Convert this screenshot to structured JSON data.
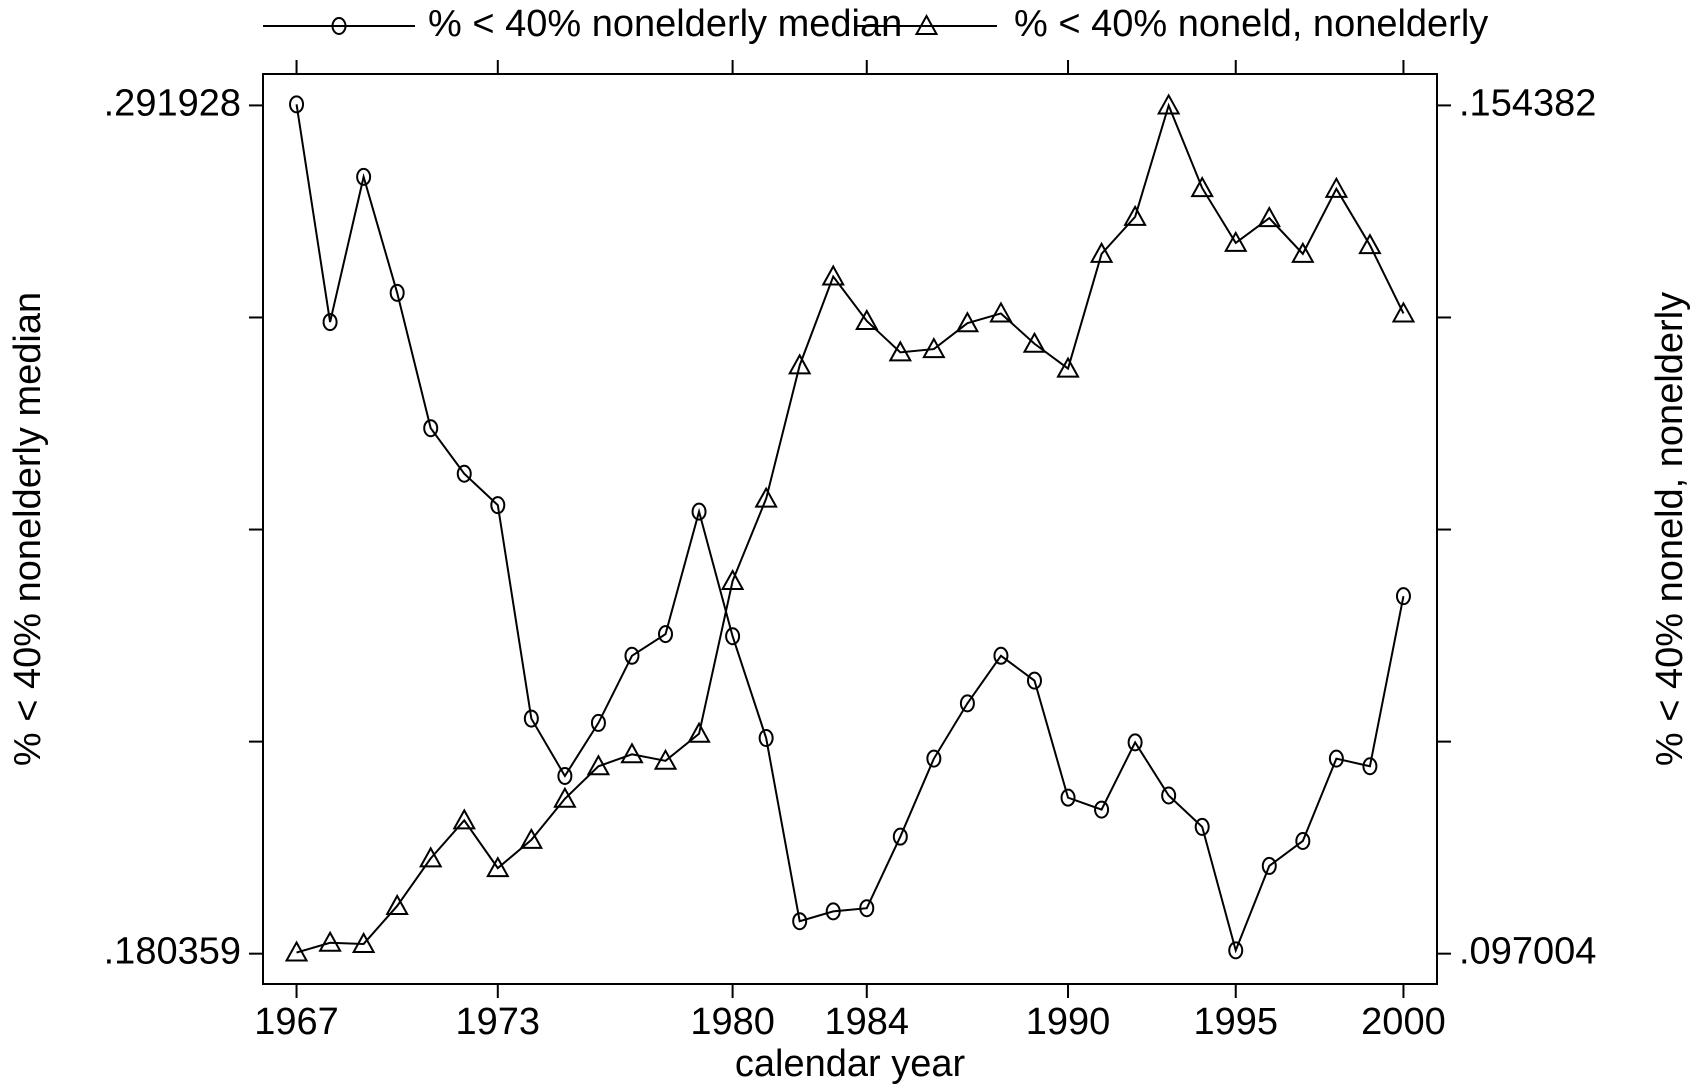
{
  "chart_data": {
    "type": "line",
    "xlabel": "calendar year",
    "ylabel": "% < 40% nonelderly median",
    "y2label": "% < 40% noneld, nonelderly",
    "x": [
      1967,
      1968,
      1969,
      1970,
      1971,
      1972,
      1973,
      1974,
      1975,
      1976,
      1977,
      1978,
      1979,
      1980,
      1981,
      1982,
      1983,
      1984,
      1985,
      1986,
      1987,
      1988,
      1989,
      1990,
      1991,
      1992,
      1993,
      1994,
      1995,
      1996,
      1997,
      1998,
      1999,
      2000
    ],
    "series": [
      {
        "name": "% < 40% nonelderly median",
        "color": "#000000",
        "marker": "circle",
        "values": [
          0.29207,
          0.26343,
          0.28253,
          0.26728,
          0.24947,
          0.24348,
          0.23935,
          0.21128,
          0.20373,
          0.21071,
          0.21954,
          0.22239,
          0.2385,
          0.22211,
          0.20872,
          0.18463,
          0.18592,
          0.18634,
          0.19575,
          0.20601,
          0.21328,
          0.21954,
          0.21627,
          0.20088,
          0.19931,
          0.20815,
          0.20116,
          0.19703,
          0.18079,
          0.1919,
          0.19518,
          0.20601,
          0.20501,
          0.22738
        ]
      },
      {
        "name": "% < 40% noneld, nonelderly",
        "color": "#000000",
        "marker": "triangle",
        "axis": "y2",
        "values": [
          0.09708,
          0.09774,
          0.09766,
          0.10023,
          0.10345,
          0.10602,
          0.10279,
          0.1047,
          0.10748,
          0.10968,
          0.11049,
          0.11005,
          0.11188,
          0.12221,
          0.12778,
          0.1368,
          0.14281,
          0.1398,
          0.13768,
          0.1379,
          0.13965,
          0.14031,
          0.13826,
          0.13658,
          0.14434,
          0.14684,
          0.15438,
          0.14879,
          0.14508,
          0.14676,
          0.14434,
          0.14874,
          0.14493,
          0.14031
        ]
      }
    ],
    "xlim": [
      1966,
      2001
    ],
    "xticks": [
      1967,
      1973,
      1980,
      1984,
      1990,
      1995,
      2000
    ],
    "ylim": [
      0.17637,
      0.29606
    ],
    "yticks": [
      {
        "value": 0.180359,
        "label": ".180359"
      },
      {
        "value": 0.291928,
        "label": ".291928"
      }
    ],
    "yticks_unlabeled": [
      0.208251,
      0.236144,
      0.264036
    ],
    "y2lim": [
      0.094952,
      0.156507
    ],
    "y2ticks": [
      {
        "value": 0.097004,
        "label": ".097004"
      },
      {
        "value": 0.154382,
        "label": ".154382"
      }
    ],
    "legend": "top"
  }
}
